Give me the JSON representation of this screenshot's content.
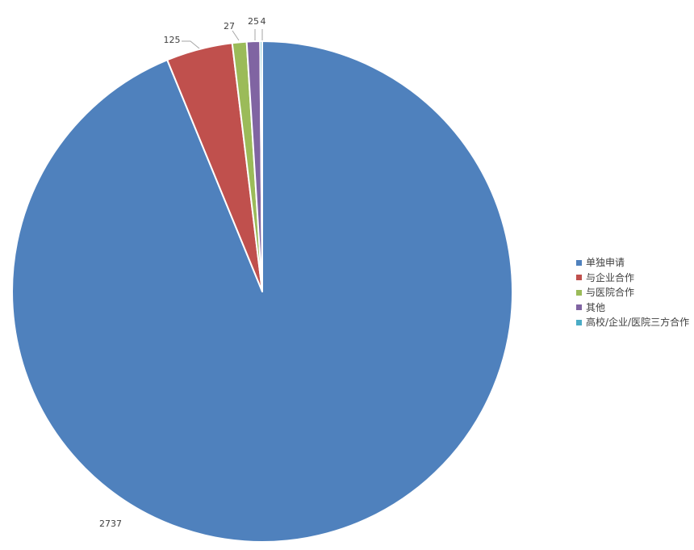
{
  "chart_data": {
    "type": "pie",
    "title": "",
    "categories": [
      "单独申请",
      "与企业合作",
      "与医院合作",
      "其他",
      "高校/企业/医院三方合作"
    ],
    "values": [
      2737,
      125,
      27,
      25,
      4
    ],
    "data_labels": [
      "2737",
      "125",
      "27",
      "25",
      "4"
    ],
    "colors": [
      "#4F81BD",
      "#C0504D",
      "#9BBB59",
      "#8064A2",
      "#4BACC6"
    ],
    "start_angle": "12 o'clock",
    "direction": "clockwise",
    "legend_position": "right"
  },
  "legend": {
    "items": [
      {
        "label": "单独申请",
        "color": "#4F81BD"
      },
      {
        "label": "与企业合作",
        "color": "#C0504D"
      },
      {
        "label": "与医院合作",
        "color": "#9BBB59"
      },
      {
        "label": "其他",
        "color": "#8064A2"
      },
      {
        "label": "高校/企业/医院三方合作",
        "color": "#4BACC6"
      }
    ]
  }
}
